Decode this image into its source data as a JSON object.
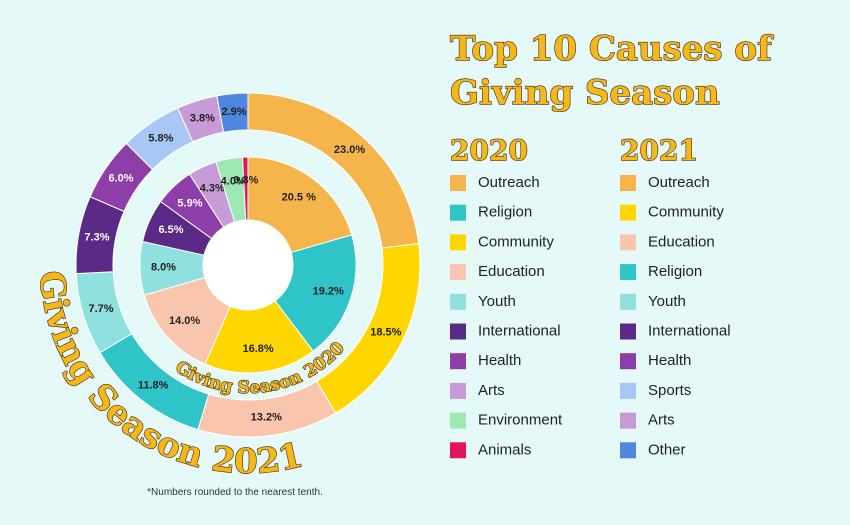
{
  "title": "Top 10 Causes of Giving Season",
  "note": "*Numbers rounded to the nearest tenth.",
  "chart_data": [
    {
      "type": "pie",
      "title": "2020",
      "ring_label": "Giving Season 2020",
      "categories": [
        "Outreach",
        "Religion",
        "Community",
        "Education",
        "Youth",
        "International",
        "Health",
        "Arts",
        "Environment",
        "Animals"
      ],
      "colors": [
        "#f6b54a",
        "#2ec4c8",
        "#ffd600",
        "#f9c6ad",
        "#8fe0de",
        "#5b2a86",
        "#8e3ea8",
        "#c79bd6",
        "#9ee8b4",
        "#e0155f"
      ],
      "values": [
        20.5,
        19.2,
        16.8,
        14.0,
        8.0,
        6.5,
        5.9,
        4.3,
        4.0,
        0.8
      ],
      "value_labels": [
        "20.5 %",
        "19.2%",
        "16.8%",
        "14.0%",
        "8.0%",
        "6.5%",
        "5.9%",
        "4.3%",
        "4.0%",
        "0.8%"
      ]
    },
    {
      "type": "pie",
      "title": "2021",
      "ring_label": "Giving Season 2021",
      "categories": [
        "Outreach",
        "Community",
        "Education",
        "Religion",
        "Youth",
        "International",
        "Health",
        "Sports",
        "Arts",
        "Other"
      ],
      "colors": [
        "#f6b54a",
        "#ffd600",
        "#f9c6ad",
        "#2ec4c8",
        "#8fe0de",
        "#5b2a86",
        "#8e3ea8",
        "#a9c7f5",
        "#c79bd6",
        "#4f86e0"
      ],
      "values": [
        23.0,
        18.5,
        13.2,
        11.8,
        7.7,
        7.3,
        6.0,
        5.8,
        3.8,
        2.9
      ],
      "value_labels": [
        "23.0%",
        "18.5%",
        "13.2%",
        "11.8%",
        "7.7%",
        "7.3%",
        "6.0%",
        "5.8%",
        "3.8%",
        "2.9%"
      ]
    }
  ]
}
